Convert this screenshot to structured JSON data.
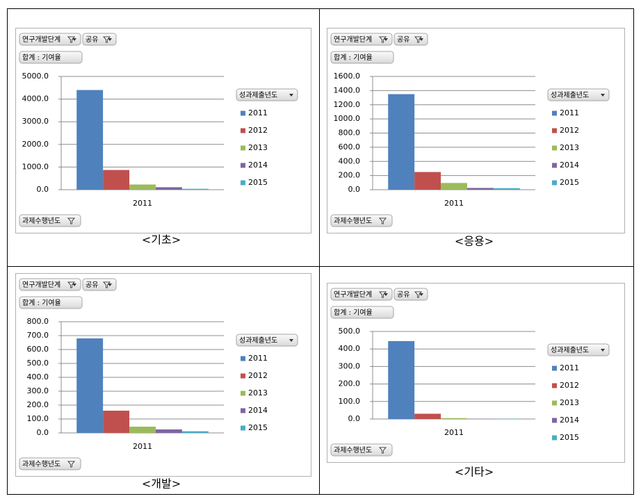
{
  "chart_data": [
    {
      "type": "bar",
      "caption": "<기초>",
      "filters": [
        "연구개발단계",
        "공유"
      ],
      "value_field": "합계 : 기여율",
      "axis_field": "과제수행년도",
      "legend_title": "성과제출년도",
      "categories": [
        "2011"
      ],
      "series": [
        {
          "name": "2011",
          "color": "#4f81bd",
          "values": [
            4400
          ]
        },
        {
          "name": "2012",
          "color": "#c0504d",
          "values": [
            870
          ]
        },
        {
          "name": "2013",
          "color": "#9bbb59",
          "values": [
            230
          ]
        },
        {
          "name": "2014",
          "color": "#8064a2",
          "values": [
            110
          ]
        },
        {
          "name": "2015",
          "color": "#4bacc6",
          "values": [
            40
          ]
        }
      ],
      "ylim": [
        0,
        5000
      ],
      "yticks": [
        {
          "value": 0,
          "label": "0.0"
        },
        {
          "value": 1000,
          "label": "1000.0"
        },
        {
          "value": 2000,
          "label": "2000.0"
        },
        {
          "value": 3000,
          "label": "3000.0"
        },
        {
          "value": 4000,
          "label": "4000.0"
        },
        {
          "value": 5000,
          "label": "5000.0"
        }
      ],
      "grid": true
    },
    {
      "type": "bar",
      "caption": "<응용>",
      "filters": [
        "연구개발단계",
        "공유"
      ],
      "value_field": "합계 : 기여율",
      "axis_field": "과제수행년도",
      "legend_title": "성과제출년도",
      "categories": [
        "2011"
      ],
      "series": [
        {
          "name": "2011",
          "color": "#4f81bd",
          "values": [
            1350
          ]
        },
        {
          "name": "2012",
          "color": "#c0504d",
          "values": [
            250
          ]
        },
        {
          "name": "2013",
          "color": "#9bbb59",
          "values": [
            95
          ]
        },
        {
          "name": "2014",
          "color": "#8064a2",
          "values": [
            25
          ]
        },
        {
          "name": "2015",
          "color": "#4bacc6",
          "values": [
            22
          ]
        }
      ],
      "ylim": [
        0,
        1600
      ],
      "yticks": [
        {
          "value": 0,
          "label": "0.0"
        },
        {
          "value": 200,
          "label": "200.0"
        },
        {
          "value": 400,
          "label": "400.0"
        },
        {
          "value": 600,
          "label": "600.0"
        },
        {
          "value": 800,
          "label": "800.0"
        },
        {
          "value": 1000,
          "label": "1000.0"
        },
        {
          "value": 1200,
          "label": "1200.0"
        },
        {
          "value": 1400,
          "label": "1400.0"
        },
        {
          "value": 1600,
          "label": "1600.0"
        }
      ],
      "grid": true
    },
    {
      "type": "bar",
      "caption": "<개발>",
      "filters": [
        "연구개발단계",
        "공유"
      ],
      "value_field": "합계 : 기여율",
      "axis_field": "과제수행년도",
      "legend_title": "성과제출년도",
      "categories": [
        "2011"
      ],
      "series": [
        {
          "name": "2011",
          "color": "#4f81bd",
          "values": [
            680
          ]
        },
        {
          "name": "2012",
          "color": "#c0504d",
          "values": [
            160
          ]
        },
        {
          "name": "2013",
          "color": "#9bbb59",
          "values": [
            45
          ]
        },
        {
          "name": "2014",
          "color": "#8064a2",
          "values": [
            25
          ]
        },
        {
          "name": "2015",
          "color": "#4bacc6",
          "values": [
            12
          ]
        }
      ],
      "ylim": [
        0,
        800
      ],
      "yticks": [
        {
          "value": 0,
          "label": "0.0"
        },
        {
          "value": 100,
          "label": "100.0"
        },
        {
          "value": 200,
          "label": "200.0"
        },
        {
          "value": 300,
          "label": "300.0"
        },
        {
          "value": 400,
          "label": "400.0"
        },
        {
          "value": 500,
          "label": "500.0"
        },
        {
          "value": 600,
          "label": "600.0"
        },
        {
          "value": 700,
          "label": "700.0"
        },
        {
          "value": 800,
          "label": "800.0"
        }
      ],
      "grid": true
    },
    {
      "type": "bar",
      "caption": "<기타>",
      "filters": [
        "연구개발단계",
        "공유"
      ],
      "value_field": "합계 : 기여율",
      "axis_field": "과제수행년도",
      "legend_title": "성과제출년도",
      "categories": [
        "2011"
      ],
      "series": [
        {
          "name": "2011",
          "color": "#4f81bd",
          "values": [
            445
          ]
        },
        {
          "name": "2012",
          "color": "#c0504d",
          "values": [
            30
          ]
        },
        {
          "name": "2013",
          "color": "#9bbb59",
          "values": [
            5
          ]
        },
        {
          "name": "2014",
          "color": "#8064a2",
          "values": [
            1
          ]
        },
        {
          "name": "2015",
          "color": "#4bacc6",
          "values": [
            1
          ]
        }
      ],
      "ylim": [
        0,
        500
      ],
      "yticks": [
        {
          "value": 0,
          "label": "0.0"
        },
        {
          "value": 100,
          "label": "100.0"
        },
        {
          "value": 200,
          "label": "200.0"
        },
        {
          "value": 300,
          "label": "300.0"
        },
        {
          "value": 400,
          "label": "400.0"
        },
        {
          "value": 500,
          "label": "500.0"
        }
      ],
      "grid": true
    }
  ]
}
